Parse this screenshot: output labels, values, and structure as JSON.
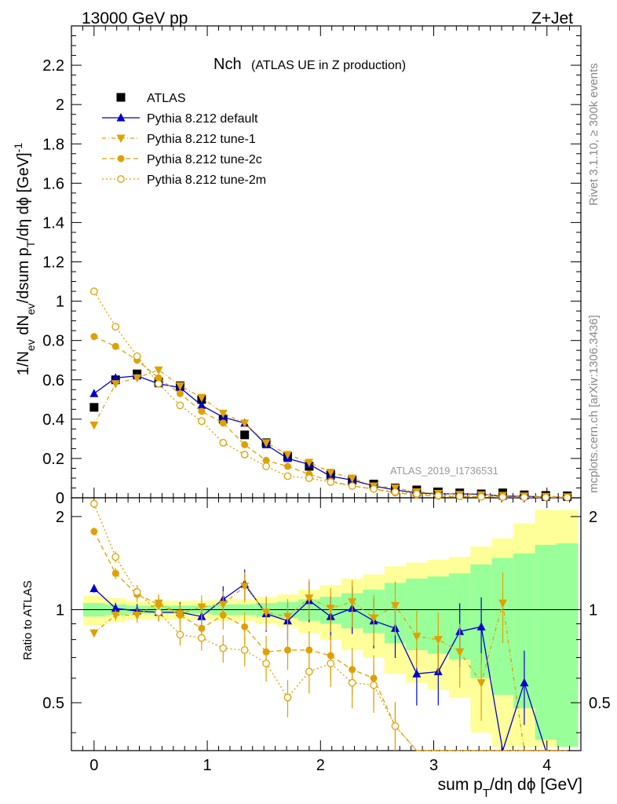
{
  "header": {
    "left": "13000 GeV pp",
    "right": "Z+Jet"
  },
  "side": {
    "rivet": "Rivet 3.1.10, ≥ 300k events",
    "mcplots": "mcplots.cern.ch [arXiv:1306.3436]"
  },
  "watermark": "ATLAS_2019_I1736531",
  "chart_data": {
    "type": "line",
    "title_main": "Nch",
    "title_sub": "(ATLAS UE in Z production)",
    "xlabel": "sum p_T/dη dϕ [GeV]",
    "ylabel": "1/N_ev dN_ev/dsum p_T/dη dϕ [GeV]^-1",
    "ratio_ylabel": "Ratio to ATLAS",
    "xlim": [
      -0.2,
      4.3
    ],
    "ylim": [
      0,
      2.4
    ],
    "ratio_ylim": [
      0.35,
      2.3
    ],
    "x_ticks": [
      "0",
      "1",
      "2",
      "3",
      "4"
    ],
    "y_ticks": [
      "0",
      "0.2",
      "0.4",
      "0.6",
      "0.8",
      "1",
      "1.2",
      "1.4",
      "1.6",
      "1.8",
      "2",
      "2.2"
    ],
    "ratio_ticks": [
      "0.5",
      "1",
      "2"
    ],
    "x": [
      0.0,
      0.19,
      0.38,
      0.57,
      0.76,
      0.95,
      1.14,
      1.33,
      1.52,
      1.71,
      1.9,
      2.09,
      2.28,
      2.47,
      2.66,
      2.85,
      3.04,
      3.23,
      3.42,
      3.61,
      3.8,
      3.99,
      4.18
    ],
    "series": [
      {
        "name": "ATLAS",
        "marker": "square-filled",
        "color": "#000000",
        "values": [
          0.46,
          0.6,
          0.63,
          0.59,
          0.57,
          0.5,
          0.4,
          0.32,
          0.28,
          0.21,
          0.16,
          0.12,
          0.09,
          0.07,
          0.05,
          0.04,
          0.03,
          0.025,
          0.02,
          0.025,
          0.015,
          0.012,
          0.01
        ],
        "ratio": [
          1,
          1,
          1,
          1,
          1,
          1,
          1,
          1,
          1,
          1,
          1,
          1,
          1,
          1,
          1,
          1,
          1,
          1,
          1,
          1,
          1,
          1,
          1
        ]
      },
      {
        "name": "Pythia 8.212 default",
        "marker": "triangle-up-filled",
        "color": "#0000cc",
        "values": [
          0.53,
          0.61,
          0.62,
          0.58,
          0.56,
          0.47,
          0.41,
          0.38,
          0.27,
          0.2,
          0.17,
          0.11,
          0.09,
          0.06,
          0.04,
          0.025,
          0.02,
          0.02,
          0.018,
          0.008,
          0.009,
          0.002,
          0.002
        ],
        "ratio": [
          1.17,
          1.01,
          0.99,
          0.98,
          0.98,
          0.95,
          1.08,
          1.21,
          0.97,
          0.92,
          1.07,
          0.95,
          1.01,
          0.92,
          0.87,
          0.62,
          0.63,
          0.85,
          0.88,
          0.2,
          0.58,
          0.2,
          0.2
        ]
      },
      {
        "name": "Pythia 8.212 tune-1",
        "marker": "triangle-down-filled",
        "color": "#e0a000",
        "values": [
          0.37,
          0.58,
          0.61,
          0.65,
          0.57,
          0.51,
          0.43,
          0.38,
          0.28,
          0.22,
          0.18,
          0.13,
          0.1,
          0.06,
          0.05,
          0.03,
          0.022,
          0.017,
          0.015,
          0.012,
          0.009,
          0.007,
          0.005
        ],
        "ratio": [
          0.84,
          0.96,
          0.96,
          1.05,
          0.97,
          1.02,
          1.04,
          1.19,
          0.98,
          0.95,
          1.09,
          1.01,
          1.06,
          0.94,
          1.03,
          0.82,
          0.8,
          0.73,
          0.58,
          1.05,
          0.35,
          0.3,
          0.3
        ]
      },
      {
        "name": "Pythia 8.212 tune-2c",
        "marker": "circle-filled",
        "color": "#e0a000",
        "values": [
          0.82,
          0.77,
          0.7,
          0.61,
          0.53,
          0.44,
          0.38,
          0.27,
          0.19,
          0.16,
          0.12,
          0.085,
          0.06,
          0.045,
          0.025,
          0.015,
          0.008,
          0.006,
          0.005,
          0.004,
          0.003,
          0.002,
          0.002
        ],
        "ratio": [
          1.79,
          1.31,
          1.12,
          1.04,
          0.96,
          0.87,
          0.96,
          0.88,
          0.73,
          0.74,
          0.74,
          0.71,
          0.64,
          0.6,
          0.42,
          0.33,
          0.3,
          0.3,
          0.34,
          0.3,
          0.3,
          0.3,
          0.3
        ]
      },
      {
        "name": "Pythia 8.212 tune-2m",
        "marker": "circle-open",
        "color": "#e0a000",
        "values": [
          1.05,
          0.87,
          0.72,
          0.58,
          0.47,
          0.39,
          0.28,
          0.22,
          0.16,
          0.11,
          0.1,
          0.08,
          0.06,
          0.045,
          0.03,
          0.02,
          0.012,
          0.008,
          0.005,
          0.004,
          0.003,
          0.002,
          0.002
        ],
        "ratio": [
          2.2,
          1.48,
          1.14,
          0.98,
          0.83,
          0.81,
          0.75,
          0.74,
          0.67,
          0.52,
          0.63,
          0.67,
          0.58,
          0.57,
          0.42,
          0.34,
          0.3,
          0.3,
          0.3,
          0.3,
          0.3,
          0.3,
          0.3
        ]
      }
    ],
    "ratio_band_stat": [
      0.05,
      0.04,
      0.03,
      0.03,
      0.03,
      0.03,
      0.04,
      0.04,
      0.05,
      0.06,
      0.08,
      0.1,
      0.13,
      0.16,
      0.22,
      0.26,
      0.28,
      0.31,
      0.4,
      0.47,
      0.52,
      0.62,
      0.64
    ],
    "ratio_band_total": [
      0.11,
      0.09,
      0.07,
      0.07,
      0.07,
      0.07,
      0.08,
      0.08,
      0.1,
      0.12,
      0.16,
      0.2,
      0.26,
      0.3,
      0.38,
      0.42,
      0.45,
      0.48,
      0.6,
      0.7,
      0.9,
      1.1,
      1.1
    ]
  }
}
